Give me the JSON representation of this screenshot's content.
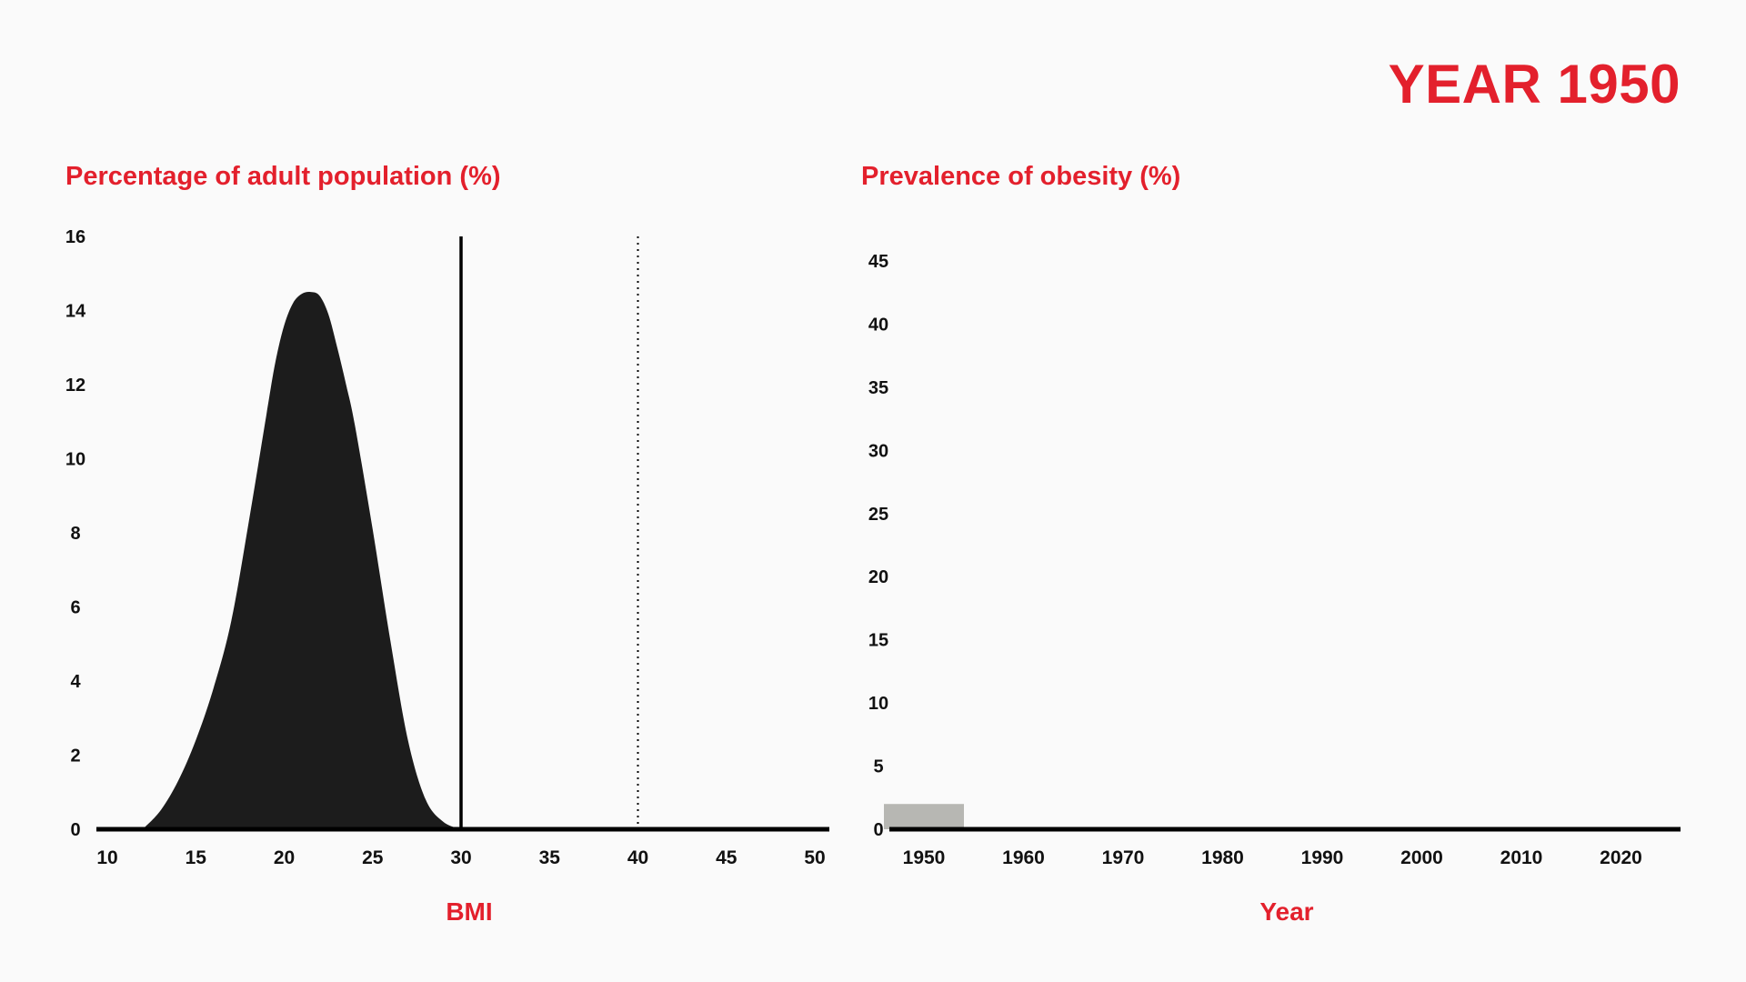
{
  "header": {
    "year_label": "YEAR 1950"
  },
  "colors": {
    "accent": "#e3202c",
    "distribution_fill": "#1c1c1c",
    "bar_fill": "#b7b7b3",
    "axis": "#000000",
    "background": "#fafafa"
  },
  "chart_data": [
    {
      "type": "area",
      "title": "Percentage of adult population (%)",
      "xlabel": "BMI",
      "ylabel": "",
      "xlim": [
        10,
        50
      ],
      "ylim": [
        0,
        16
      ],
      "x_ticks": [
        10,
        15,
        20,
        25,
        30,
        35,
        40,
        45,
        50
      ],
      "y_ticks": [
        0,
        2,
        4,
        6,
        8,
        10,
        12,
        14,
        16
      ],
      "series": [
        {
          "x": [
            12.0,
            13.0,
            14.0,
            15.0,
            16.0,
            17.0,
            18.0,
            19.0,
            19.5,
            20.0,
            20.5,
            21.0,
            21.5,
            22.0,
            22.5,
            23.0,
            23.5,
            24.0,
            25.0,
            26.0,
            27.0,
            28.0,
            29.0,
            30.0
          ],
          "y": [
            0.0,
            0.5,
            1.3,
            2.4,
            3.8,
            5.6,
            8.3,
            11.2,
            12.6,
            13.6,
            14.2,
            14.45,
            14.5,
            14.4,
            13.9,
            13.0,
            12.0,
            10.9,
            8.1,
            5.1,
            2.4,
            0.8,
            0.2,
            0.0
          ]
        }
      ],
      "reference_lines": [
        {
          "x": 30,
          "style": "solid"
        },
        {
          "x": 40,
          "style": "dotted"
        }
      ],
      "grid": false
    },
    {
      "type": "bar",
      "title": "Prevalence of obesity (%)",
      "xlabel": "Year",
      "ylabel": "",
      "categories": [
        "1950",
        "1960",
        "1970",
        "1980",
        "1990",
        "2000",
        "2010",
        "2020"
      ],
      "values": [
        2,
        null,
        null,
        null,
        null,
        null,
        null,
        null
      ],
      "ylim": [
        0,
        45
      ],
      "y_ticks": [
        0,
        5,
        10,
        15,
        20,
        25,
        30,
        35,
        40,
        45
      ],
      "grid": false
    }
  ]
}
